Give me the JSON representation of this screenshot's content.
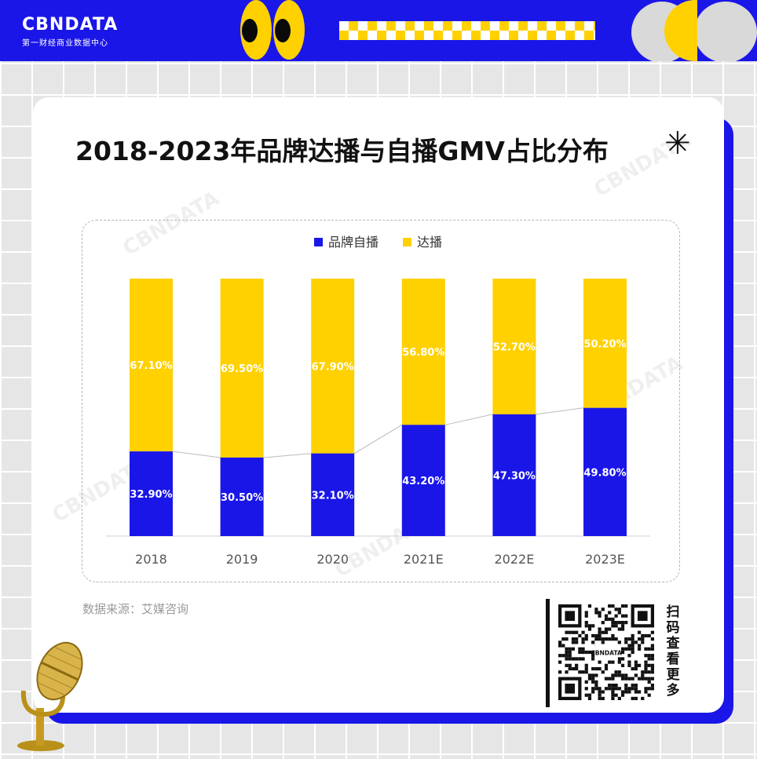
{
  "brand": {
    "logo": "CBNDATA",
    "tagline": "第一财经商业数据中心"
  },
  "title": "2018-2023年品牌达播与自播GMV占比分布",
  "source": "数据来源：艾媒咨询",
  "qr_text": [
    "扫",
    "码",
    "查",
    "看",
    "更",
    "多"
  ],
  "icons": {
    "asterisk": "✳",
    "microphone": "microphone-icon",
    "qr": "qr-code-icon"
  },
  "colors": {
    "self": "#1a16e8",
    "affiliate": "#ffd100",
    "header": "#1a16e8"
  },
  "chart_data": {
    "type": "bar",
    "stacked": true,
    "percent": true,
    "categories": [
      "2018",
      "2019",
      "2020",
      "2021E",
      "2022E",
      "2023E"
    ],
    "series": [
      {
        "name": "品牌自播",
        "values": [
          32.9,
          30.5,
          32.1,
          43.2,
          47.3,
          49.8
        ],
        "labels": [
          "32.90%",
          "30.50%",
          "32.10%",
          "43.20%",
          "47.30%",
          "49.80%"
        ]
      },
      {
        "name": "达播",
        "values": [
          67.1,
          69.5,
          67.9,
          56.8,
          52.7,
          50.2
        ],
        "labels": [
          "67.10%",
          "69.50%",
          "67.90%",
          "56.80%",
          "52.70%",
          "50.20%"
        ]
      }
    ],
    "ylim": [
      0,
      100
    ],
    "legend": "top-center",
    "grid": false
  }
}
